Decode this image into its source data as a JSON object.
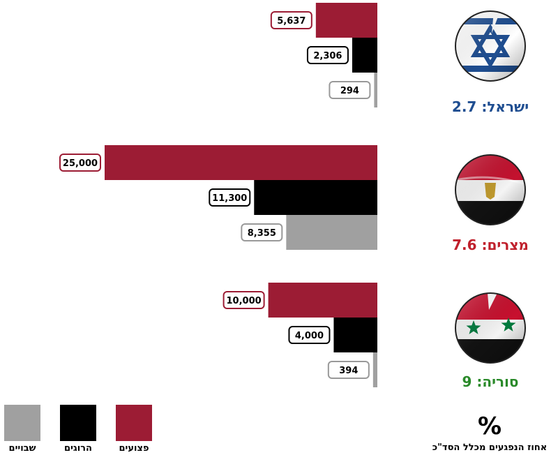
{
  "colors": {
    "wounded": "#9c1c34",
    "killed": "#000000",
    "pow": "#a0a0a0",
    "israel_text": "#1f4e91",
    "egypt_text": "#c0202c",
    "syria_text": "#2a8a2a"
  },
  "chart_data": {
    "type": "bar",
    "orientation": "horizontal",
    "direction": "right-to-left",
    "categories": [
      "ישראל",
      "מצרים",
      "סוריה"
    ],
    "series": [
      {
        "name": "פצועים",
        "values": [
          5637,
          25000,
          10000
        ]
      },
      {
        "name": "הרוגים",
        "values": [
          2306,
          11300,
          4000
        ]
      },
      {
        "name": "שבויים",
        "values": [
          294,
          8355,
          394
        ]
      }
    ],
    "value_labels": [
      [
        "5,637",
        "2,306",
        "294"
      ],
      [
        "25,000",
        "11,300",
        "8,355"
      ],
      [
        "10,000",
        "4,000",
        "394"
      ]
    ],
    "percent_labels": [
      "ישראל: 2.7",
      "מצרים: 7.6",
      "סוריה: 9"
    ],
    "flag_icons": [
      "israel-flag-icon",
      "egypt-flag-icon",
      "syria-flag-icon"
    ],
    "legend_placement": "bottom-left",
    "grid": false,
    "xlim": [
      0,
      25000
    ]
  },
  "footer": {
    "percent_symbol": "%",
    "caption": "אחוז הנפגעים מכלל הסד\"כ"
  }
}
